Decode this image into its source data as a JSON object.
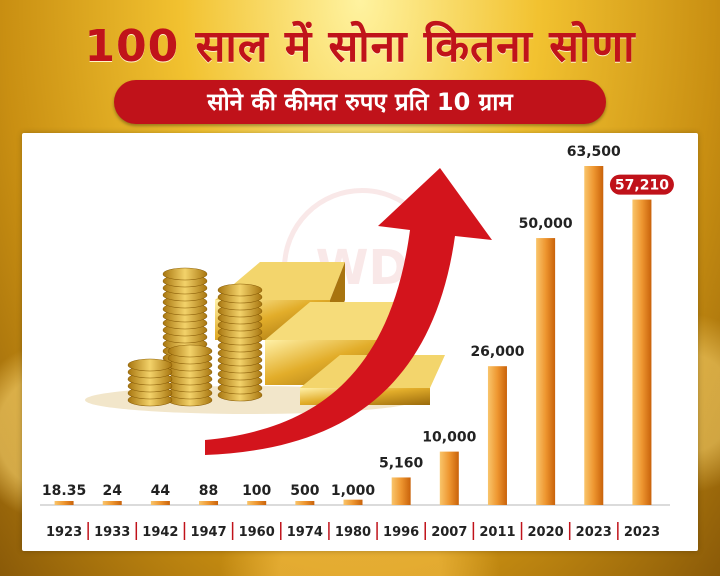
{
  "title": "100 साल में सोना कितना सोणा",
  "subtitle": "सोने की कीमत रुपए प्रति 10 ग्राम",
  "watermark": "WD",
  "colors": {
    "bar_light": "#f5b35a",
    "bar_dark": "#d96f0e",
    "highlight": "#c0121a",
    "arrow": "#d3141c"
  },
  "chart_data": {
    "type": "bar",
    "title": "100 साल में सोना कितना सोणा",
    "subtitle": "सोने की कीमत रुपए प्रति 10 ग्राम",
    "categories": [
      "1923",
      "1933",
      "1942",
      "1947",
      "1960",
      "1974",
      "1980",
      "1996",
      "2007",
      "2011",
      "2020",
      "2023",
      "2023"
    ],
    "labels": [
      "18.35",
      "24",
      "44",
      "88",
      "100",
      "500",
      "1,000",
      "5,160",
      "10,000",
      "26,000",
      "50,000",
      "63,500",
      "57,210"
    ],
    "values": [
      18.35,
      24,
      44,
      88,
      100,
      500,
      1000,
      5160,
      10000,
      26000,
      50000,
      63500,
      57210
    ],
    "highlight_index": 12,
    "grid": false,
    "legend": "none"
  }
}
